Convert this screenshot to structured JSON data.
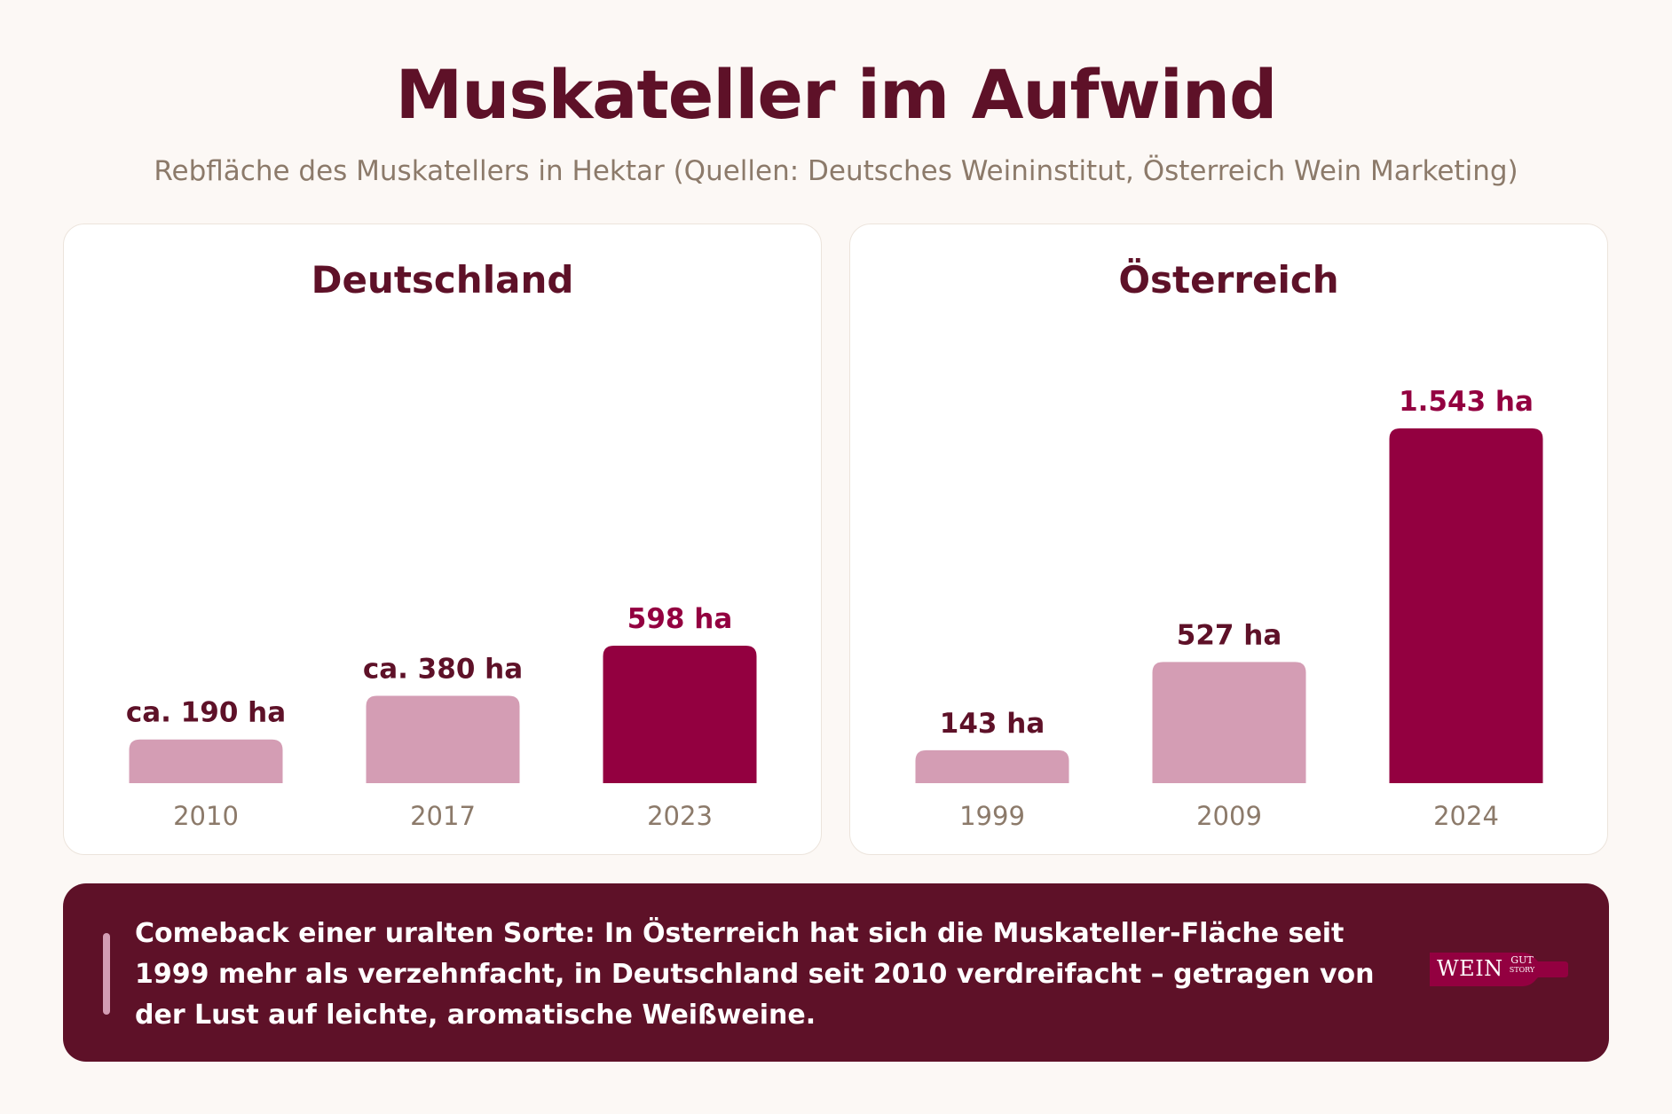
{
  "header": {
    "title": "Muskateller im Aufwind",
    "subtitle": "Rebfläche des Muskatellers in Hektar (Quellen: Deutsches Weininstitut, Österreich Wein Marketing)"
  },
  "colors": {
    "background": "#fcf8f5",
    "title": "#5e1128",
    "subtitle": "#8c7a6a",
    "bar_light": "#d49db4",
    "bar_accent": "#930040",
    "footer_bg": "#5e1128"
  },
  "chart_data": [
    {
      "type": "bar",
      "title": "Deutschland",
      "categories": [
        "2010",
        "2017",
        "2023"
      ],
      "values": [
        190,
        380,
        598
      ],
      "data_labels": [
        "ca. 190 ha",
        "ca. 380 ha",
        "598 ha"
      ],
      "highlight": [
        false,
        false,
        true
      ],
      "ylim": [
        0,
        1543
      ],
      "grid": false
    },
    {
      "type": "bar",
      "title": "Österreich",
      "categories": [
        "1999",
        "2009",
        "2024"
      ],
      "values": [
        143,
        527,
        1543
      ],
      "data_labels": [
        "143 ha",
        "527 ha",
        "1.543 ha"
      ],
      "highlight": [
        false,
        false,
        true
      ],
      "ylim": [
        0,
        1543
      ],
      "grid": false
    }
  ],
  "footer": {
    "text": "Comeback einer uralten Sorte: In Österreich hat sich die Muskateller-Fläche seit 1999 mehr als verzehnfacht, in Deutschland seit 2010 verdreifacht – getragen von der Lust auf leichte, aromatische Weißweine.",
    "logo": {
      "word": "WEIN",
      "sup_top": "GUT",
      "sup_bottom": "STORY"
    }
  }
}
